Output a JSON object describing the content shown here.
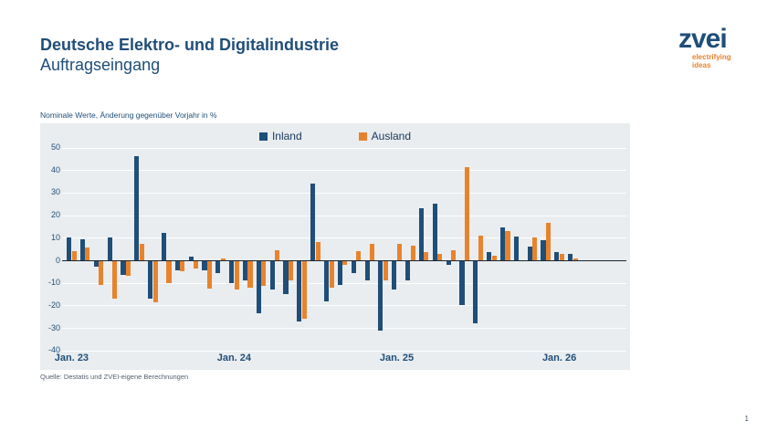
{
  "header": {
    "title": "Deutsche Elektro- und Digitalindustrie",
    "subtitle": "Auftragseingang"
  },
  "logo": {
    "brand": "zvei",
    "tagline_line1": "electrifying",
    "tagline_line2": "ideas"
  },
  "chart_note": "Nominale Werte, Änderung gegenüber Vorjahr in %",
  "footer": {
    "source": "Quelle: Destatis und ZVEI-eigene Berechnungen",
    "page_number": "1"
  },
  "colors": {
    "brand_blue": "#1F4E79",
    "accent_orange": "#E8832D",
    "chart_background": "#E9EDEF"
  },
  "chart_data": {
    "type": "bar",
    "title": "",
    "xlabel": "",
    "ylabel": "",
    "ylim": [
      -40,
      50
    ],
    "ytick_step": 10,
    "grid": true,
    "legend_position": "top-center",
    "categories": [
      "Jan. 23",
      "Feb. 23",
      "Mär. 23",
      "Apr. 23",
      "Mai 23",
      "Jun. 23",
      "Jul. 23",
      "Aug. 23",
      "Sep. 23",
      "Okt. 23",
      "Nov. 23",
      "Dez. 23",
      "Jan. 24",
      "Feb. 24",
      "Mär. 24",
      "Apr. 24",
      "Mai 24",
      "Jun. 24",
      "Jul. 24",
      "Aug. 24",
      "Sep. 24",
      "Okt. 24",
      "Nov. 24",
      "Dez. 24",
      "Jan. 25",
      "Feb. 25",
      "Mär. 25",
      "Apr. 25",
      "Mai 25",
      "Jun. 25",
      "Jul. 25",
      "Aug. 25",
      "Sep. 25",
      "Okt. 25",
      "Nov. 25",
      "Dez. 25",
      "Jan. 26",
      "Feb. 26"
    ],
    "x_ticks": [
      {
        "index": 0,
        "label": "Jan. 23"
      },
      {
        "index": 12,
        "label": "Jan. 24"
      },
      {
        "index": 24,
        "label": "Jan. 25"
      },
      {
        "index": 36,
        "label": "Jan. 26"
      }
    ],
    "series": [
      {
        "name": "Inland",
        "color": "#1F4E79",
        "values": [
          10,
          9.5,
          -3,
          10,
          -6.5,
          46,
          -17,
          12,
          -4.5,
          1.5,
          -4.5,
          -5.5,
          -10,
          -9,
          -23.5,
          -13,
          -15,
          -27,
          34,
          -18,
          -11,
          -5.5,
          -9,
          -31,
          -13,
          -9,
          23,
          25,
          -2,
          -20,
          -28,
          3.5,
          14.5,
          10.5,
          6,
          9,
          3.5,
          3
        ]
      },
      {
        "name": "Ausland",
        "color": "#E8832D",
        "values": [
          4,
          5.5,
          -11,
          -17,
          -7,
          7.5,
          -18.5,
          -10,
          -5,
          -3.5,
          -12.5,
          1,
          -13,
          -12,
          -11.5,
          4.5,
          -9,
          -26,
          8,
          -12,
          -2,
          4,
          7.5,
          -9,
          7.5,
          6.5,
          3.5,
          3,
          4.5,
          41.5,
          11,
          2,
          13,
          0,
          10,
          16.5,
          3,
          1
        ]
      }
    ]
  }
}
